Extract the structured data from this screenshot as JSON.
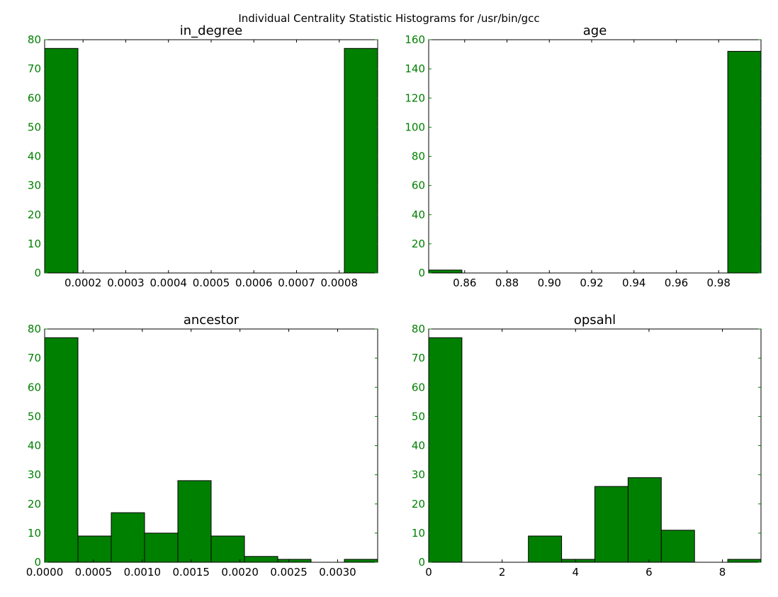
{
  "figure": {
    "title": "Individual Centrality Statistic Histograms for /usr/bin/gcc",
    "bar_color": "#008000",
    "ytick_color": "#008000"
  },
  "chart_data": [
    {
      "type": "bar",
      "title": "in_degree",
      "xlabel": "",
      "ylabel": "",
      "xlim": [
        0.00011,
        0.00089
      ],
      "ylim": [
        0,
        80
      ],
      "bin_edges": [
        0.00011,
        0.000188,
        0.000266,
        0.000344,
        0.000422,
        0.0005,
        0.000578,
        0.000656,
        0.000734,
        0.000812,
        0.00089
      ],
      "values": [
        77,
        0,
        0,
        0,
        0,
        0,
        0,
        0,
        0,
        77
      ],
      "xticks": [
        0.0002,
        0.0003,
        0.0004,
        0.0005,
        0.0006,
        0.0007,
        0.0008
      ],
      "xtick_labels": [
        "0.0002",
        "0.0003",
        "0.0004",
        "0.0005",
        "0.0006",
        "0.0007",
        "0.0008"
      ],
      "yticks": [
        0,
        10,
        20,
        30,
        40,
        50,
        60,
        70,
        80
      ],
      "ytick_labels": [
        "0",
        "10",
        "20",
        "30",
        "40",
        "50",
        "60",
        "70",
        "80"
      ]
    },
    {
      "type": "bar",
      "title": "age",
      "xlabel": "",
      "ylabel": "",
      "xlim": [
        0.843,
        1.0
      ],
      "ylim": [
        0,
        160
      ],
      "bin_edges": [
        0.843,
        0.8587,
        0.8744,
        0.8901,
        0.9058,
        0.9215,
        0.9372,
        0.9529,
        0.9686,
        0.9843,
        1.0
      ],
      "values": [
        2,
        0,
        0,
        0,
        0,
        0,
        0,
        0,
        0,
        152
      ],
      "xticks": [
        0.86,
        0.88,
        0.9,
        0.92,
        0.94,
        0.96,
        0.98
      ],
      "xtick_labels": [
        "0.86",
        "0.88",
        "0.90",
        "0.92",
        "0.94",
        "0.96",
        "0.98"
      ],
      "yticks": [
        0,
        20,
        40,
        60,
        80,
        100,
        120,
        140,
        160
      ],
      "ytick_labels": [
        "0",
        "20",
        "40",
        "60",
        "80",
        "100",
        "120",
        "140",
        "160"
      ]
    },
    {
      "type": "bar",
      "title": "ancestor",
      "xlabel": "",
      "ylabel": "",
      "xlim": [
        0,
        0.00341
      ],
      "ylim": [
        0,
        80
      ],
      "bin_edges": [
        0,
        0.000341,
        0.000682,
        0.001023,
        0.001364,
        0.001705,
        0.002046,
        0.002387,
        0.002728,
        0.003069,
        0.00341
      ],
      "values": [
        77,
        9,
        17,
        10,
        28,
        9,
        2,
        1,
        0,
        1
      ],
      "xticks": [
        0,
        0.0005,
        0.001,
        0.0015,
        0.002,
        0.0025,
        0.003
      ],
      "xtick_labels": [
        "0.0000",
        "0.0005",
        "0.0010",
        "0.0015",
        "0.0020",
        "0.0025",
        "0.0030"
      ],
      "yticks": [
        0,
        10,
        20,
        30,
        40,
        50,
        60,
        70,
        80
      ],
      "ytick_labels": [
        "0",
        "10",
        "20",
        "30",
        "40",
        "50",
        "60",
        "70",
        "80"
      ]
    },
    {
      "type": "bar",
      "title": "opsahl",
      "xlabel": "",
      "ylabel": "",
      "xlim": [
        0,
        9.05
      ],
      "ylim": [
        0,
        80
      ],
      "bin_edges": [
        0,
        0.905,
        1.81,
        2.715,
        3.62,
        4.525,
        5.43,
        6.335,
        7.24,
        8.145,
        9.05
      ],
      "values": [
        77,
        0,
        0,
        9,
        1,
        26,
        29,
        11,
        0,
        1
      ],
      "xticks": [
        0,
        2,
        4,
        6,
        8
      ],
      "xtick_labels": [
        "0",
        "2",
        "4",
        "6",
        "8"
      ],
      "yticks": [
        0,
        10,
        20,
        30,
        40,
        50,
        60,
        70,
        80
      ],
      "ytick_labels": [
        "0",
        "10",
        "20",
        "30",
        "40",
        "50",
        "60",
        "70",
        "80"
      ]
    }
  ]
}
